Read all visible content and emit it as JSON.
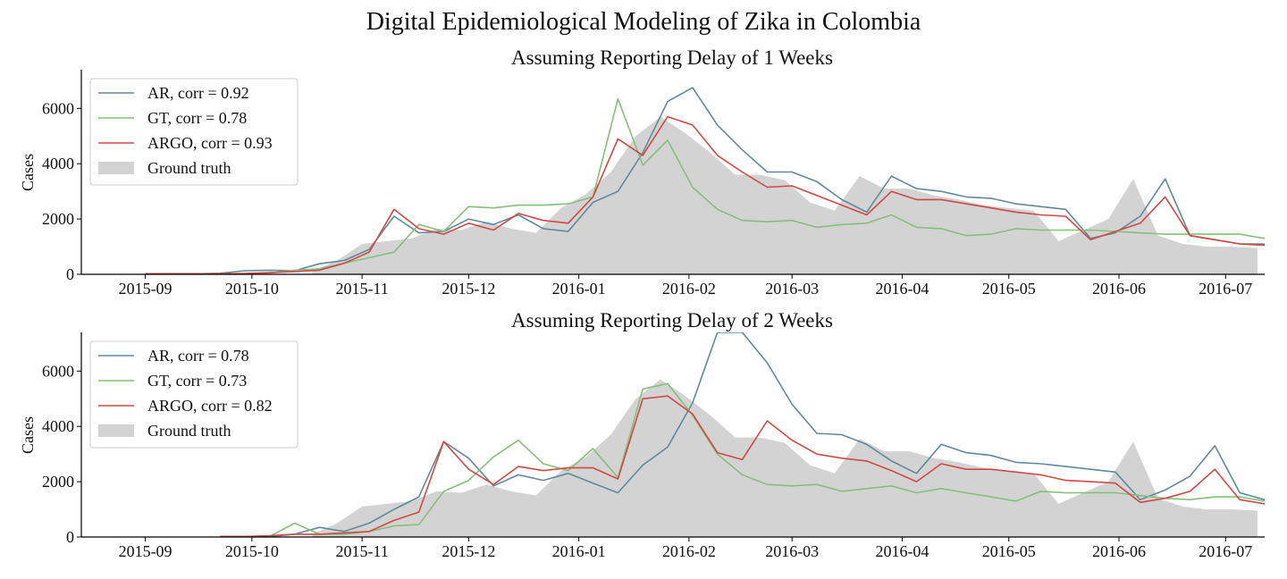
{
  "figure_title": "Digital Epidemiological Modeling of Zika in Colombia",
  "colors": {
    "AR": "#5f8a9e",
    "GT": "#86bf7a",
    "ARGO": "#d04a44",
    "truth": "#d3d3d3"
  },
  "chart_data": [
    {
      "type": "line",
      "title": "Assuming Reporting Delay of 1 Weeks",
      "ylabel": "Cases",
      "xlabel": "",
      "ylim": [
        0,
        7400
      ],
      "xlim": [
        "2015-08-14",
        "2016-07-12"
      ],
      "yticks": [
        0,
        2000,
        4000,
        6000
      ],
      "xticks": [
        "2015-09",
        "2015-10",
        "2015-11",
        "2015-12",
        "2016-01",
        "2016-02",
        "2016-03",
        "2016-04",
        "2016-05",
        "2016-06",
        "2016-07"
      ],
      "grid": false,
      "legend_position": "upper-left",
      "ground_truth": {
        "name": "Ground truth",
        "x": [
          "2015-10-18",
          "2015-10-25",
          "2015-11-01",
          "2015-11-08",
          "2015-11-15",
          "2015-11-22",
          "2015-11-29",
          "2015-12-06",
          "2015-12-13",
          "2015-12-20",
          "2015-12-27",
          "2016-01-03",
          "2016-01-10",
          "2016-01-17",
          "2016-01-24",
          "2016-01-31",
          "2016-02-07",
          "2016-02-14",
          "2016-02-21",
          "2016-02-28",
          "2016-03-06",
          "2016-03-13",
          "2016-03-20",
          "2016-03-27",
          "2016-04-03",
          "2016-04-10",
          "2016-04-17",
          "2016-04-24",
          "2016-05-01",
          "2016-05-08",
          "2016-05-15",
          "2016-05-22",
          "2016-05-29",
          "2016-06-05",
          "2016-06-12",
          "2016-06-19",
          "2016-06-26",
          "2016-07-03",
          "2016-07-10"
        ],
        "values": [
          100,
          500,
          1100,
          1200,
          1300,
          1650,
          1600,
          1900,
          1650,
          1500,
          2400,
          2900,
          3700,
          5000,
          5700,
          5100,
          4400,
          3600,
          3600,
          3400,
          2600,
          2300,
          3550,
          3100,
          3100,
          2850,
          2700,
          2500,
          2400,
          2300,
          1200,
          1600,
          2000,
          3450,
          1400,
          1100,
          1000,
          1000,
          950
        ]
      },
      "series": [
        {
          "name": "AR, corr = 0.92",
          "color_key": "AR",
          "x": [
            "2015-09-01",
            "2015-09-08",
            "2015-09-15",
            "2015-09-22",
            "2015-09-29",
            "2015-10-06",
            "2015-10-13",
            "2015-10-20",
            "2015-10-27",
            "2015-11-03",
            "2015-11-10",
            "2015-11-17",
            "2015-11-24",
            "2015-12-01",
            "2015-12-08",
            "2015-12-15",
            "2015-12-22",
            "2015-12-29",
            "2016-01-05",
            "2016-01-12",
            "2016-01-19",
            "2016-01-26",
            "2016-02-02",
            "2016-02-09",
            "2016-02-16",
            "2016-02-23",
            "2016-03-01",
            "2016-03-08",
            "2016-03-15",
            "2016-03-22",
            "2016-03-29",
            "2016-04-05",
            "2016-04-12",
            "2016-04-19",
            "2016-04-26",
            "2016-05-03",
            "2016-05-10",
            "2016-05-17",
            "2016-05-24",
            "2016-05-31",
            "2016-06-07",
            "2016-06-14",
            "2016-06-21",
            "2016-06-28",
            "2016-07-05",
            "2016-07-12"
          ],
          "values": [
            20,
            20,
            20,
            40,
            130,
            150,
            130,
            380,
            500,
            900,
            2100,
            1500,
            1550,
            2000,
            1800,
            2150,
            1650,
            1550,
            2600,
            3000,
            4400,
            6250,
            6750,
            5400,
            4500,
            3700,
            3700,
            3350,
            2700,
            2250,
            3550,
            3100,
            3000,
            2800,
            2750,
            2550,
            2450,
            2350,
            1300,
            1500,
            2100,
            3450,
            1400,
            1250,
            1100,
            1100
          ]
        },
        {
          "name": "GT, corr = 0.78",
          "color_key": "GT",
          "x": [
            "2015-09-01",
            "2015-09-08",
            "2015-09-15",
            "2015-09-22",
            "2015-09-29",
            "2015-10-06",
            "2015-10-13",
            "2015-10-20",
            "2015-10-27",
            "2015-11-03",
            "2015-11-10",
            "2015-11-17",
            "2015-11-24",
            "2015-12-01",
            "2015-12-08",
            "2015-12-15",
            "2015-12-22",
            "2015-12-29",
            "2016-01-05",
            "2016-01-12",
            "2016-01-19",
            "2016-01-26",
            "2016-02-02",
            "2016-02-09",
            "2016-02-16",
            "2016-02-23",
            "2016-03-01",
            "2016-03-08",
            "2016-03-15",
            "2016-03-22",
            "2016-03-29",
            "2016-04-05",
            "2016-04-12",
            "2016-04-19",
            "2016-04-26",
            "2016-05-03",
            "2016-05-10",
            "2016-05-17",
            "2016-05-24",
            "2016-05-31",
            "2016-06-07",
            "2016-06-14",
            "2016-06-21",
            "2016-06-28",
            "2016-07-05",
            "2016-07-12"
          ],
          "values": [
            20,
            20,
            20,
            20,
            20,
            50,
            150,
            200,
            400,
            600,
            800,
            1800,
            1550,
            2450,
            2400,
            2500,
            2500,
            2550,
            2800,
            6350,
            3950,
            4850,
            3150,
            2350,
            1950,
            1900,
            1950,
            1700,
            1800,
            1850,
            2150,
            1700,
            1650,
            1400,
            1450,
            1650,
            1600,
            1600,
            1600,
            1550,
            1500,
            1450,
            1450,
            1450,
            1450,
            1300
          ]
        },
        {
          "name": "ARGO, corr = 0.93",
          "color_key": "ARGO",
          "x": [
            "2015-09-01",
            "2015-09-08",
            "2015-09-15",
            "2015-09-22",
            "2015-09-29",
            "2015-10-06",
            "2015-10-13",
            "2015-10-20",
            "2015-10-27",
            "2015-11-03",
            "2015-11-10",
            "2015-11-17",
            "2015-11-24",
            "2015-12-01",
            "2015-12-08",
            "2015-12-15",
            "2015-12-22",
            "2015-12-29",
            "2016-01-05",
            "2016-01-12",
            "2016-01-19",
            "2016-01-26",
            "2016-02-02",
            "2016-02-09",
            "2016-02-16",
            "2016-02-23",
            "2016-03-01",
            "2016-03-08",
            "2016-03-15",
            "2016-03-22",
            "2016-03-29",
            "2016-04-05",
            "2016-04-12",
            "2016-04-19",
            "2016-04-26",
            "2016-05-03",
            "2016-05-10",
            "2016-05-17",
            "2016-05-24",
            "2016-05-31",
            "2016-06-07",
            "2016-06-14",
            "2016-06-21",
            "2016-06-28",
            "2016-07-05",
            "2016-07-12"
          ],
          "values": [
            20,
            20,
            20,
            20,
            30,
            60,
            100,
            150,
            400,
            800,
            2350,
            1650,
            1450,
            1850,
            1600,
            2200,
            1950,
            1850,
            2800,
            4900,
            4300,
            5700,
            5400,
            4300,
            3700,
            3150,
            3200,
            2850,
            2500,
            2150,
            3000,
            2700,
            2700,
            2550,
            2400,
            2250,
            2150,
            2100,
            1250,
            1550,
            1850,
            2800,
            1400,
            1250,
            1100,
            1050
          ]
        }
      ]
    },
    {
      "type": "line",
      "title": "Assuming Reporting Delay of 2 Weeks",
      "ylabel": "Cases",
      "xlabel": "",
      "ylim": [
        0,
        7400
      ],
      "xlim": [
        "2015-08-14",
        "2016-07-12"
      ],
      "yticks": [
        0,
        2000,
        4000,
        6000
      ],
      "xticks": [
        "2015-09",
        "2015-10",
        "2015-11",
        "2015-12",
        "2016-01",
        "2016-02",
        "2016-03",
        "2016-04",
        "2016-05",
        "2016-06",
        "2016-07"
      ],
      "grid": false,
      "legend_position": "upper-left",
      "ground_truth": {
        "name": "Ground truth",
        "x": [
          "2015-10-18",
          "2015-10-25",
          "2015-11-01",
          "2015-11-08",
          "2015-11-15",
          "2015-11-22",
          "2015-11-29",
          "2015-12-06",
          "2015-12-13",
          "2015-12-20",
          "2015-12-27",
          "2016-01-03",
          "2016-01-10",
          "2016-01-17",
          "2016-01-24",
          "2016-01-31",
          "2016-02-07",
          "2016-02-14",
          "2016-02-21",
          "2016-02-28",
          "2016-03-06",
          "2016-03-13",
          "2016-03-20",
          "2016-03-27",
          "2016-04-03",
          "2016-04-10",
          "2016-04-17",
          "2016-04-24",
          "2016-05-01",
          "2016-05-08",
          "2016-05-15",
          "2016-05-22",
          "2016-05-29",
          "2016-06-05",
          "2016-06-12",
          "2016-06-19",
          "2016-06-26",
          "2016-07-03",
          "2016-07-10"
        ],
        "values": [
          100,
          500,
          1100,
          1200,
          1300,
          1650,
          1600,
          1900,
          1650,
          1500,
          2400,
          2900,
          3700,
          5000,
          5700,
          5100,
          4400,
          3600,
          3600,
          3400,
          2600,
          2300,
          3550,
          3100,
          3100,
          2850,
          2700,
          2500,
          2400,
          2300,
          1200,
          1600,
          2000,
          3450,
          1400,
          1100,
          1000,
          1000,
          950
        ]
      },
      "series": [
        {
          "name": "AR, corr = 0.78",
          "color_key": "AR",
          "x": [
            "2015-09-22",
            "2015-09-29",
            "2015-10-06",
            "2015-10-13",
            "2015-10-20",
            "2015-10-27",
            "2015-11-03",
            "2015-11-10",
            "2015-11-17",
            "2015-11-24",
            "2015-12-01",
            "2015-12-08",
            "2015-12-15",
            "2015-12-22",
            "2015-12-29",
            "2016-01-05",
            "2016-01-12",
            "2016-01-19",
            "2016-01-26",
            "2016-02-02",
            "2016-02-09",
            "2016-02-16",
            "2016-02-23",
            "2016-03-01",
            "2016-03-08",
            "2016-03-15",
            "2016-03-22",
            "2016-03-29",
            "2016-04-05",
            "2016-04-12",
            "2016-04-19",
            "2016-04-26",
            "2016-05-03",
            "2016-05-10",
            "2016-05-17",
            "2016-05-24",
            "2016-05-31",
            "2016-06-07",
            "2016-06-14",
            "2016-06-21",
            "2016-06-28",
            "2016-07-05",
            "2016-07-12"
          ],
          "values": [
            20,
            20,
            20,
            100,
            350,
            200,
            500,
            1000,
            1450,
            3450,
            2850,
            1850,
            2250,
            2050,
            2300,
            1950,
            1600,
            2600,
            3250,
            4850,
            7400,
            7400,
            6300,
            4800,
            3750,
            3700,
            3350,
            2750,
            2300,
            3350,
            3050,
            2950,
            2700,
            2650,
            2550,
            2450,
            2350,
            1350,
            1700,
            2200,
            3300,
            1600,
            1350
          ]
        },
        {
          "name": "GT, corr = 0.73",
          "color_key": "GT",
          "x": [
            "2015-09-22",
            "2015-09-29",
            "2015-10-06",
            "2015-10-13",
            "2015-10-20",
            "2015-10-27",
            "2015-11-03",
            "2015-11-10",
            "2015-11-17",
            "2015-11-24",
            "2015-12-01",
            "2015-12-08",
            "2015-12-15",
            "2015-12-22",
            "2015-12-29",
            "2016-01-05",
            "2016-01-12",
            "2016-01-19",
            "2016-01-26",
            "2016-02-02",
            "2016-02-09",
            "2016-02-16",
            "2016-02-23",
            "2016-03-01",
            "2016-03-08",
            "2016-03-15",
            "2016-03-22",
            "2016-03-29",
            "2016-04-05",
            "2016-04-12",
            "2016-04-19",
            "2016-04-26",
            "2016-05-03",
            "2016-05-10",
            "2016-05-17",
            "2016-05-24",
            "2016-05-31",
            "2016-06-07",
            "2016-06-14",
            "2016-06-21",
            "2016-06-28",
            "2016-07-05",
            "2016-07-12"
          ],
          "values": [
            20,
            20,
            20,
            500,
            100,
            100,
            200,
            400,
            450,
            1650,
            2050,
            2900,
            3500,
            2650,
            2400,
            3200,
            2150,
            5350,
            5550,
            4400,
            3000,
            2250,
            1900,
            1850,
            1900,
            1650,
            1750,
            1850,
            1600,
            1750,
            1600,
            1450,
            1300,
            1650,
            1600,
            1600,
            1600,
            1500,
            1400,
            1350,
            1450,
            1450,
            1300
          ]
        },
        {
          "name": "ARGO, corr = 0.82",
          "color_key": "ARGO",
          "x": [
            "2015-09-22",
            "2015-09-29",
            "2015-10-06",
            "2015-10-13",
            "2015-10-20",
            "2015-10-27",
            "2015-11-03",
            "2015-11-10",
            "2015-11-17",
            "2015-11-24",
            "2015-12-01",
            "2015-12-08",
            "2015-12-15",
            "2015-12-22",
            "2015-12-29",
            "2016-01-05",
            "2016-01-12",
            "2016-01-19",
            "2016-01-26",
            "2016-02-02",
            "2016-02-09",
            "2016-02-16",
            "2016-02-23",
            "2016-03-01",
            "2016-03-08",
            "2016-03-15",
            "2016-03-22",
            "2016-03-29",
            "2016-04-05",
            "2016-04-12",
            "2016-04-19",
            "2016-04-26",
            "2016-05-03",
            "2016-05-10",
            "2016-05-17",
            "2016-05-24",
            "2016-05-31",
            "2016-06-07",
            "2016-06-14",
            "2016-06-21",
            "2016-06-28",
            "2016-07-05",
            "2016-07-12"
          ],
          "values": [
            20,
            20,
            50,
            100,
            100,
            150,
            200,
            600,
            900,
            3450,
            2450,
            1900,
            2550,
            2400,
            2500,
            2500,
            2100,
            5000,
            5100,
            4450,
            3050,
            2800,
            4200,
            3500,
            3000,
            2850,
            2750,
            2400,
            2000,
            2650,
            2450,
            2450,
            2350,
            2250,
            2050,
            2000,
            1950,
            1250,
            1400,
            1650,
            2450,
            1350,
            1200
          ]
        }
      ]
    }
  ]
}
